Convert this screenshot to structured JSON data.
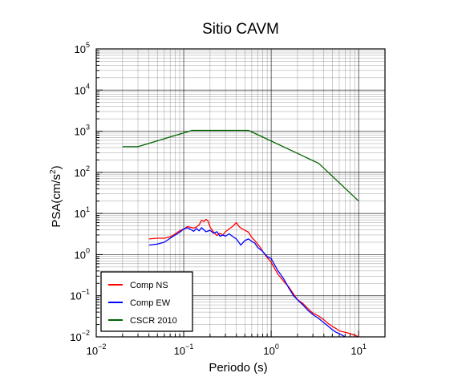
{
  "chart_data": {
    "type": "line",
    "title": "Sitio CAVM",
    "xlabel": "Periodo (s)",
    "ylabel": {
      "main": "PSA(cm/s",
      "sup": "2",
      "end": ")"
    },
    "xscale": "log",
    "yscale": "log",
    "xlim": [
      0.01,
      20
    ],
    "ylim": [
      0.01,
      100000
    ],
    "grid": true,
    "legend_position": "bottom-left",
    "x_ticks": [
      {
        "value": 0.01,
        "base": "10",
        "exp": "−2"
      },
      {
        "value": 0.1,
        "base": "10",
        "exp": "−1"
      },
      {
        "value": 1,
        "base": "10",
        "exp": "0"
      },
      {
        "value": 10,
        "base": "10",
        "exp": "1"
      }
    ],
    "y_ticks": [
      {
        "value": 0.01,
        "base": "10",
        "exp": "−2"
      },
      {
        "value": 0.1,
        "base": "10",
        "exp": "−1"
      },
      {
        "value": 1,
        "base": "10",
        "exp": "0"
      },
      {
        "value": 10,
        "base": "10",
        "exp": "1"
      },
      {
        "value": 100,
        "base": "10",
        "exp": "2"
      },
      {
        "value": 1000,
        "base": "10",
        "exp": "3"
      },
      {
        "value": 10000,
        "base": "10",
        "exp": "4"
      },
      {
        "value": 100000,
        "base": "10",
        "exp": "5"
      }
    ],
    "series": [
      {
        "name": "Comp NS",
        "color": "#ff0000",
        "x": [
          0.04,
          0.05,
          0.06,
          0.07,
          0.08,
          0.09,
          0.1,
          0.11,
          0.12,
          0.13,
          0.14,
          0.15,
          0.16,
          0.17,
          0.18,
          0.19,
          0.2,
          0.22,
          0.24,
          0.26,
          0.28,
          0.3,
          0.33,
          0.36,
          0.4,
          0.43,
          0.46,
          0.5,
          0.55,
          0.6,
          0.65,
          0.7,
          0.75,
          0.8,
          0.9,
          1.0,
          1.1,
          1.2,
          1.4,
          1.6,
          1.8,
          2.0,
          2.3,
          2.6,
          3.0,
          3.5,
          4.0,
          4.5,
          5.0,
          5.5,
          6.0,
          7.0,
          8.0,
          9.0,
          10.0
        ],
        "y": [
          2.4,
          2.5,
          2.5,
          2.7,
          3.2,
          3.8,
          4.2,
          4.8,
          4.6,
          4.4,
          4.7,
          5.3,
          6.8,
          6.4,
          7.2,
          6.5,
          4.7,
          3.5,
          2.9,
          3.3,
          3.0,
          3.6,
          4.2,
          4.8,
          6.0,
          4.8,
          4.3,
          3.9,
          3.5,
          2.6,
          2.2,
          1.8,
          1.5,
          1.2,
          0.85,
          0.65,
          0.45,
          0.33,
          0.22,
          0.16,
          0.11,
          0.08,
          0.065,
          0.05,
          0.038,
          0.032,
          0.026,
          0.021,
          0.018,
          0.016,
          0.014,
          0.013,
          0.012,
          0.011,
          0.01
        ]
      },
      {
        "name": "Comp EW",
        "color": "#0000ff",
        "x": [
          0.04,
          0.05,
          0.06,
          0.07,
          0.08,
          0.09,
          0.1,
          0.11,
          0.12,
          0.13,
          0.14,
          0.15,
          0.16,
          0.18,
          0.2,
          0.22,
          0.24,
          0.26,
          0.28,
          0.3,
          0.33,
          0.36,
          0.4,
          0.45,
          0.5,
          0.55,
          0.6,
          0.65,
          0.7,
          0.8,
          0.9,
          1.0,
          1.1,
          1.2,
          1.4,
          1.6,
          1.8,
          2.0,
          2.3,
          2.6,
          3.0,
          3.5,
          4.0,
          4.5,
          5.0,
          5.5,
          6.0,
          6.5,
          7.0
        ],
        "y": [
          1.7,
          1.8,
          2.0,
          2.5,
          3.0,
          3.5,
          4.2,
          4.5,
          4.1,
          3.7,
          4.3,
          3.8,
          4.5,
          3.6,
          3.9,
          3.3,
          3.6,
          2.8,
          3.0,
          2.8,
          3.2,
          2.8,
          2.4,
          1.7,
          2.2,
          2.4,
          2.1,
          1.9,
          1.5,
          1.2,
          0.9,
          0.8,
          0.55,
          0.4,
          0.25,
          0.15,
          0.1,
          0.08,
          0.06,
          0.045,
          0.035,
          0.028,
          0.022,
          0.018,
          0.015,
          0.013,
          0.012,
          0.011,
          0.01
        ]
      },
      {
        "name": "CSCR 2010",
        "color": "#006400",
        "x": [
          0.02,
          0.03,
          0.125,
          0.55,
          3.5,
          10
        ],
        "y": [
          420,
          420,
          1050,
          1050,
          165,
          20
        ]
      }
    ]
  }
}
